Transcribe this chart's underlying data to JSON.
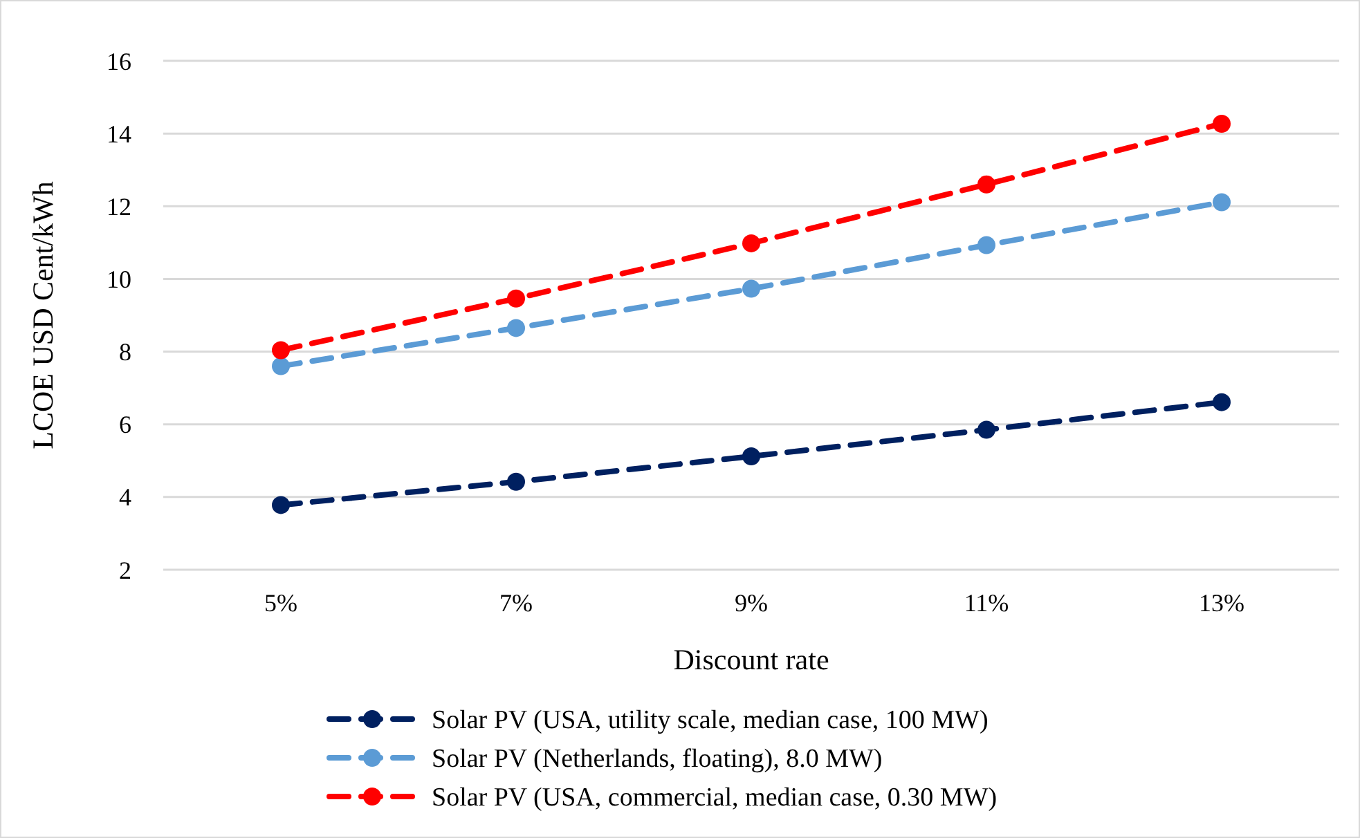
{
  "chart_data": {
    "type": "line",
    "xlabel": "Discount rate",
    "ylabel": "LCOE  USD Cent/kWh",
    "categories": [
      "5%",
      "7%",
      "9%",
      "11%",
      "13%"
    ],
    "ylim": [
      2,
      16
    ],
    "yticks": [
      2,
      4,
      6,
      8,
      10,
      12,
      14,
      16
    ],
    "grid": "y",
    "legend": "bottom",
    "marker": "circle",
    "series": [
      {
        "name": "Solar PV (USA, utility scale, median case, 100 MW)",
        "color": "#002060",
        "line_style": "dashed",
        "values": [
          3.78,
          4.42,
          5.12,
          5.85,
          6.61
        ]
      },
      {
        "name": "Solar PV (Netherlands, floating), 8.0 MW)",
        "color": "#5b9bd5",
        "line_style": "dashed",
        "values": [
          7.6,
          8.65,
          9.73,
          10.93,
          12.11
        ]
      },
      {
        "name": "Solar PV (USA, commercial, median case, 0.30 MW)",
        "color": "#ff0000",
        "line_style": "dashed",
        "values": [
          8.04,
          9.46,
          10.98,
          12.6,
          14.27
        ]
      }
    ]
  }
}
